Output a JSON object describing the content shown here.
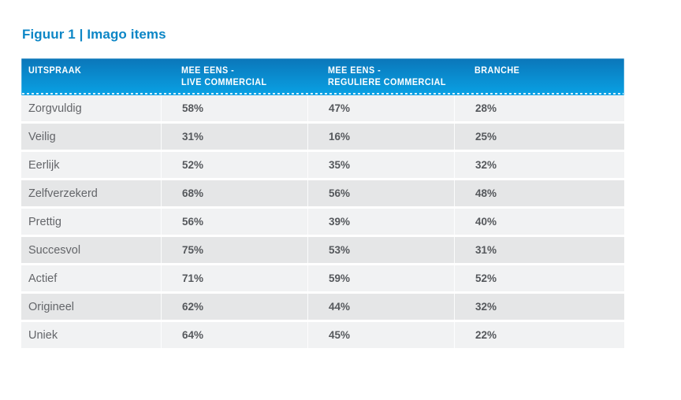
{
  "page": {
    "title": "Figuur 1 | Imago items"
  },
  "colors": {
    "title_blue": "#0C86C6",
    "header_gradient_top": "#0B76B9",
    "header_gradient_bottom": "#09A0E3",
    "header_text": "#FFFFFF",
    "row_light": "#F1F2F3",
    "row_dark": "#E5E6E7",
    "label_text": "#636569",
    "value_text": "#55585C"
  },
  "table": {
    "columns": [
      {
        "line1": "UITSPRAAK",
        "line2": ""
      },
      {
        "line1": "MEE EENS -",
        "line2": "LIVE COMMERCIAL"
      },
      {
        "line1": "MEE EENS -",
        "line2": "REGULIERE COMMERCIAL"
      },
      {
        "line1": "BRANCHE",
        "line2": ""
      }
    ],
    "rows": [
      {
        "uitspraak": "Zorgvuldig",
        "live": "58%",
        "regulier": "47%",
        "branche": "28%"
      },
      {
        "uitspraak": "Veilig",
        "live": "31%",
        "regulier": "16%",
        "branche": "25%"
      },
      {
        "uitspraak": "Eerlijk",
        "live": "52%",
        "regulier": "35%",
        "branche": "32%"
      },
      {
        "uitspraak": "Zelfverzekerd",
        "live": "68%",
        "regulier": "56%",
        "branche": "48%"
      },
      {
        "uitspraak": "Prettig",
        "live": "56%",
        "regulier": "39%",
        "branche": "40%"
      },
      {
        "uitspraak": "Succesvol",
        "live": "75%",
        "regulier": "53%",
        "branche": "31%"
      },
      {
        "uitspraak": "Actief",
        "live": "71%",
        "regulier": "59%",
        "branche": "52%"
      },
      {
        "uitspraak": "Origineel",
        "live": "62%",
        "regulier": "44%",
        "branche": "32%"
      },
      {
        "uitspraak": "Uniek",
        "live": "64%",
        "regulier": "45%",
        "branche": "22%"
      }
    ]
  }
}
